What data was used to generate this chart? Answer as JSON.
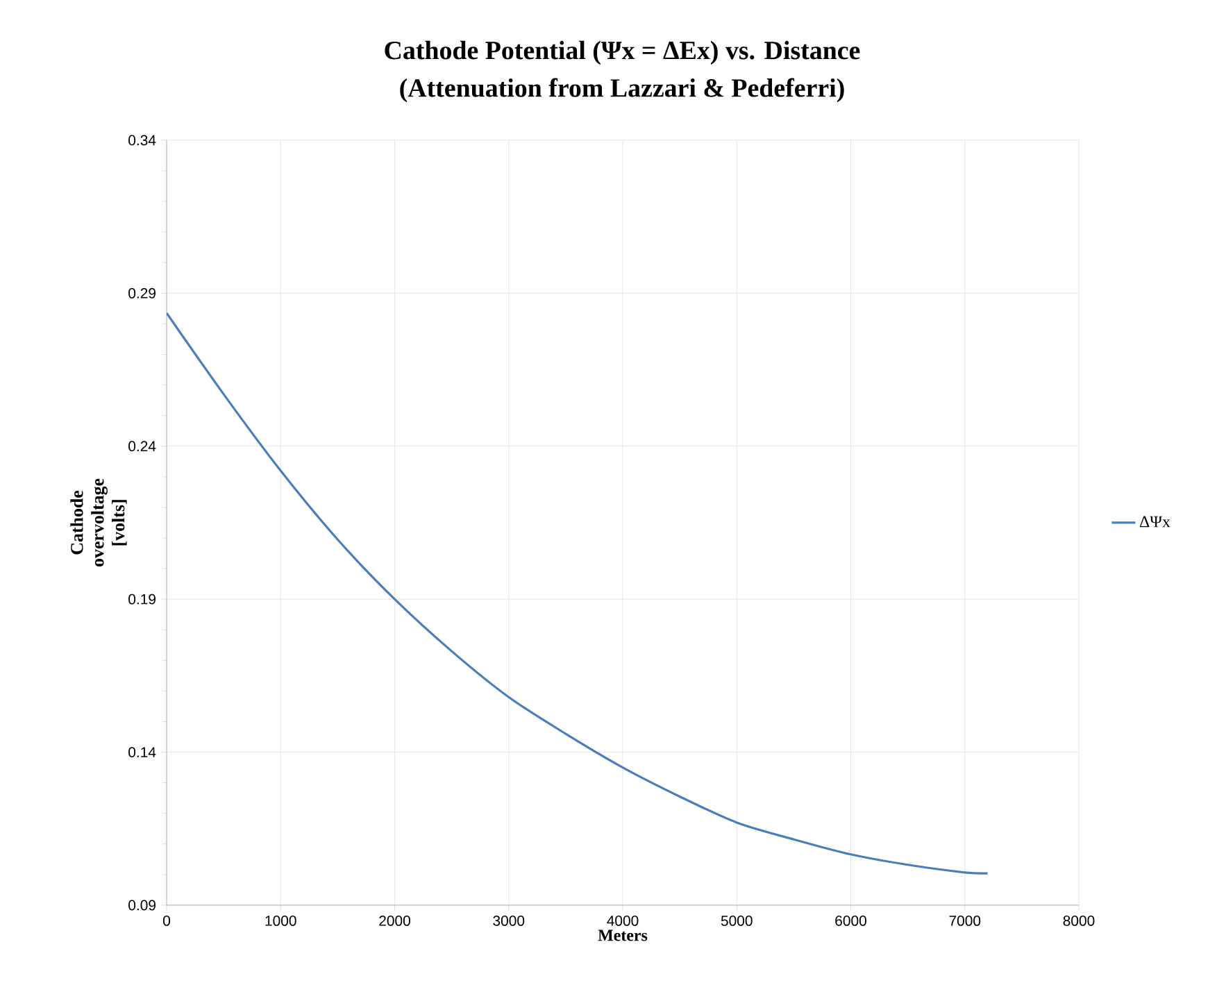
{
  "chart_data": {
    "type": "line",
    "title": "Cathode Potential  (Ψx = ΔEx) vs. Distance",
    "subtitle": "(Attenuation from Lazzari & Pedeferri)",
    "xlabel": "Meters",
    "ylabel": "Cathode overvoltage [volts]",
    "x": [
      0,
      500,
      1000,
      1500,
      2000,
      2500,
      3000,
      3500,
      4000,
      4500,
      5000,
      5500,
      6000,
      6500,
      7000,
      7200
    ],
    "series": [
      {
        "name": "ΔΨx",
        "color": "#4a7ebb",
        "values": [
          0.2835,
          0.257,
          0.232,
          0.2095,
          0.19,
          0.173,
          0.158,
          0.146,
          0.135,
          0.1255,
          0.117,
          0.1115,
          0.1066,
          0.1032,
          0.1007,
          0.1004
        ]
      }
    ],
    "xlim": [
      0,
      8000
    ],
    "ylim": [
      0.09,
      0.34
    ],
    "xticks": [
      0,
      1000,
      2000,
      3000,
      4000,
      5000,
      6000,
      7000,
      8000
    ],
    "yticks": [
      0.09,
      0.14,
      0.19,
      0.24,
      0.29,
      0.34
    ],
    "grid": true,
    "legend": "right",
    "marker": "none",
    "line_style": "solid"
  }
}
